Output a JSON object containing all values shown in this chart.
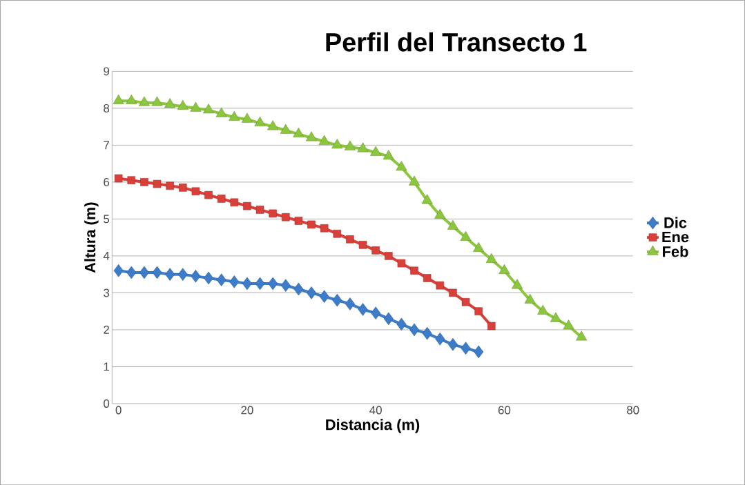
{
  "chart_data": {
    "type": "line",
    "title": "Perfil del Transecto 1",
    "xlabel": "Distancia (m)",
    "ylabel": "Altura (m)",
    "xlim": [
      -1,
      80
    ],
    "xticks": [
      0,
      20,
      40,
      60,
      80
    ],
    "ylim": [
      0,
      9
    ],
    "yticks": [
      0,
      1,
      2,
      3,
      4,
      5,
      6,
      7,
      8,
      9
    ],
    "grid": "y",
    "legend": "right",
    "series": [
      {
        "name": "Dic",
        "color": "#3d7cc9",
        "marker": "diamond",
        "x": [
          0,
          2,
          4,
          6,
          8,
          10,
          12,
          14,
          16,
          18,
          20,
          22,
          24,
          26,
          28,
          30,
          32,
          34,
          36,
          38,
          40,
          42,
          44,
          46,
          48,
          50,
          52,
          54,
          56
        ],
        "values": [
          3.6,
          3.55,
          3.55,
          3.55,
          3.5,
          3.5,
          3.45,
          3.4,
          3.35,
          3.3,
          3.25,
          3.25,
          3.25,
          3.2,
          3.1,
          3.0,
          2.9,
          2.8,
          2.7,
          2.55,
          2.45,
          2.3,
          2.15,
          2.0,
          1.9,
          1.75,
          1.6,
          1.5,
          1.4
        ]
      },
      {
        "name": "Ene",
        "color": "#d9403a",
        "marker": "square",
        "x": [
          0,
          2,
          4,
          6,
          8,
          10,
          12,
          14,
          16,
          18,
          20,
          22,
          24,
          26,
          28,
          30,
          32,
          34,
          36,
          38,
          40,
          42,
          44,
          46,
          48,
          50,
          52,
          54,
          56,
          58
        ],
        "values": [
          6.1,
          6.05,
          6.0,
          5.95,
          5.9,
          5.85,
          5.75,
          5.65,
          5.55,
          5.45,
          5.35,
          5.25,
          5.15,
          5.05,
          4.95,
          4.85,
          4.75,
          4.6,
          4.45,
          4.3,
          4.15,
          4.0,
          3.8,
          3.6,
          3.4,
          3.2,
          3.0,
          2.75,
          2.5,
          2.1
        ]
      },
      {
        "name": "Feb",
        "color": "#8cc63f",
        "marker": "triangle",
        "x": [
          0,
          2,
          4,
          6,
          8,
          10,
          12,
          14,
          16,
          18,
          20,
          22,
          24,
          26,
          28,
          30,
          32,
          34,
          36,
          38,
          40,
          42,
          44,
          46,
          48,
          50,
          52,
          54,
          56,
          58,
          60,
          62,
          64,
          66,
          68,
          70,
          72
        ],
        "values": [
          8.2,
          8.2,
          8.15,
          8.15,
          8.1,
          8.05,
          8.0,
          7.95,
          7.85,
          7.75,
          7.7,
          7.6,
          7.5,
          7.4,
          7.3,
          7.2,
          7.1,
          7.0,
          6.95,
          6.9,
          6.8,
          6.7,
          6.4,
          6.0,
          5.5,
          5.1,
          4.8,
          4.5,
          4.2,
          3.9,
          3.6,
          3.2,
          2.8,
          2.5,
          2.3,
          2.1,
          1.8
        ]
      }
    ]
  }
}
